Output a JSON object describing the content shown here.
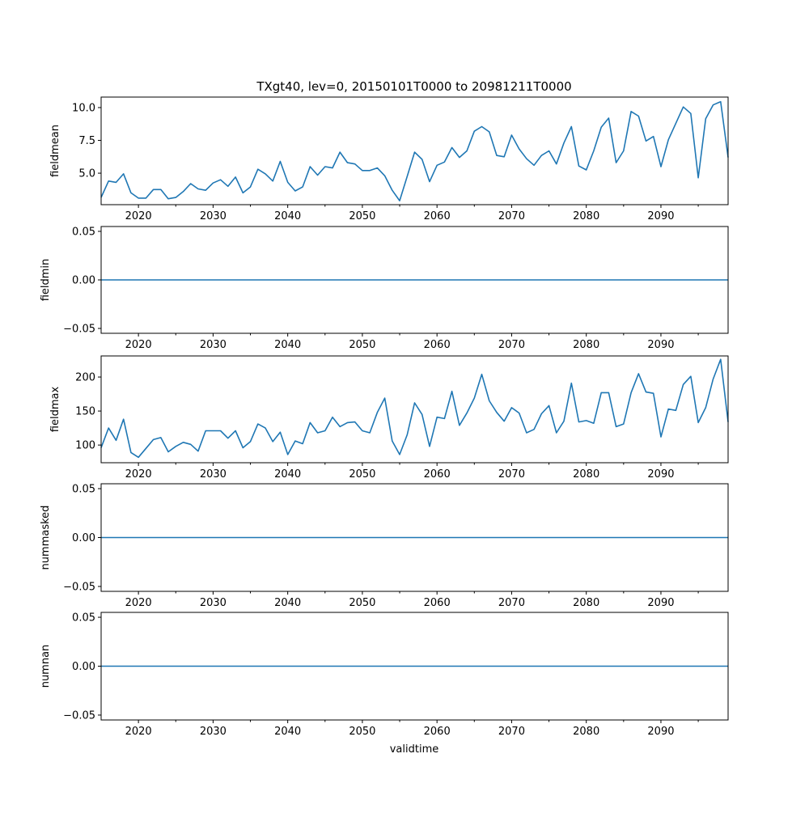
{
  "chart_data": {
    "type": "line",
    "title": "TXgt40, lev=0, 20150101T0000 to 20981211T0000",
    "xlabel": "validtime",
    "x_start": 2015,
    "x_end": 2099,
    "xlim": [
      2015,
      2099
    ],
    "x_ticks": [
      2020,
      2030,
      2040,
      2050,
      2060,
      2070,
      2080,
      2090
    ],
    "x_tick_labels": [
      "2020",
      "2030",
      "2040",
      "2050",
      "2060",
      "2070",
      "2080",
      "2090"
    ],
    "x_minor_ticks": [
      2025,
      2035,
      2045,
      2055,
      2065,
      2075,
      2085,
      2095
    ],
    "color": "#1f77b4",
    "panels": [
      {
        "ylabel": "fieldmean",
        "ylim": [
          2.6,
          10.8
        ],
        "y_ticks": [
          5.0,
          7.5,
          10.0
        ],
        "y_tick_labels": [
          "5.0",
          "7.5",
          "10.0"
        ],
        "values": [
          3.15,
          4.4,
          4.3,
          4.95,
          3.5,
          3.1,
          3.1,
          3.75,
          3.75,
          3.05,
          3.15,
          3.6,
          4.2,
          3.8,
          3.7,
          4.25,
          4.5,
          4.0,
          4.7,
          3.5,
          3.95,
          5.3,
          4.95,
          4.4,
          5.9,
          4.3,
          3.65,
          3.95,
          5.5,
          4.85,
          5.5,
          5.4,
          6.6,
          5.8,
          5.7,
          5.2,
          5.2,
          5.4,
          4.8,
          3.7,
          2.9,
          4.75,
          6.6,
          6.05,
          4.35,
          5.6,
          5.85,
          6.95,
          6.2,
          6.7,
          8.2,
          8.55,
          8.15,
          6.35,
          6.25,
          7.9,
          6.85,
          6.1,
          5.6,
          6.35,
          6.7,
          5.7,
          7.3,
          8.55,
          5.55,
          5.25,
          6.7,
          8.5,
          9.2,
          5.8,
          6.7,
          9.7,
          9.35,
          7.45,
          7.8,
          5.5,
          7.55,
          8.8,
          10.05,
          9.55,
          4.65,
          9.15,
          10.2,
          10.45,
          6.2
        ]
      },
      {
        "ylabel": "fieldmin",
        "ylim": [
          -0.055,
          0.055
        ],
        "y_ticks": [
          -0.05,
          0.0,
          0.05
        ],
        "y_tick_labels": [
          "−0.05",
          "0.00",
          "0.05"
        ],
        "constant": 0
      },
      {
        "ylabel": "fieldmax",
        "ylim": [
          74,
          231
        ],
        "y_ticks": [
          100,
          150,
          200
        ],
        "y_tick_labels": [
          "100",
          "150",
          "200"
        ],
        "values": [
          96,
          125,
          107,
          138,
          89,
          82,
          95,
          108,
          111,
          90,
          98,
          104,
          101,
          91,
          121,
          121,
          121,
          110,
          121,
          96,
          105,
          131,
          125,
          105,
          119,
          86,
          106,
          102,
          133,
          118,
          121,
          141,
          127,
          133,
          134,
          121,
          118,
          148,
          169,
          106,
          86,
          115,
          162,
          145,
          98,
          141,
          139,
          179,
          129,
          147,
          169,
          204,
          165,
          148,
          135,
          155,
          147,
          118,
          123,
          146,
          158,
          118,
          135,
          191,
          134,
          136,
          132,
          177,
          177,
          127,
          131,
          177,
          205,
          178,
          176,
          112,
          153,
          151,
          189,
          201,
          133,
          155,
          197,
          226,
          134
        ]
      },
      {
        "ylabel": "nummasked",
        "ylim": [
          -0.055,
          0.055
        ],
        "y_ticks": [
          -0.05,
          0.0,
          0.05
        ],
        "y_tick_labels": [
          "−0.05",
          "0.00",
          "0.05"
        ],
        "constant": 0
      },
      {
        "ylabel": "numnan",
        "ylim": [
          -0.055,
          0.055
        ],
        "y_ticks": [
          -0.05,
          0.0,
          0.05
        ],
        "y_tick_labels": [
          "−0.05",
          "0.00",
          "0.05"
        ],
        "constant": 0
      }
    ]
  }
}
